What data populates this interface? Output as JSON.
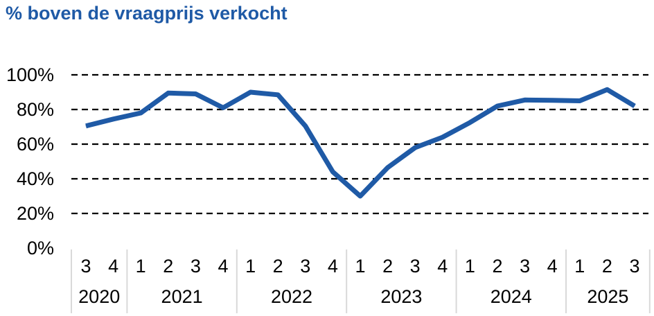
{
  "title": "% boven de vraagprijs verkocht",
  "colors": {
    "title": "#1f5aa6",
    "line": "#1f5aa6",
    "grid": "#000000",
    "axis_separator": "#d9d9d9"
  },
  "chart_data": {
    "type": "line",
    "title": "% boven de vraagprijs verkocht",
    "xlabel": "",
    "ylabel": "",
    "ylim": [
      0,
      100
    ],
    "yticks": [
      "0%",
      "20%",
      "40%",
      "60%",
      "80%",
      "100%"
    ],
    "ytick_values": [
      0,
      20,
      40,
      60,
      80,
      100
    ],
    "grid": "horizontal dashed",
    "legend": "none",
    "x": [
      "3",
      "4",
      "1",
      "2",
      "3",
      "4",
      "1",
      "2",
      "3",
      "4",
      "1",
      "2",
      "3",
      "4",
      "1",
      "2",
      "3",
      "4",
      "1",
      "2",
      "3"
    ],
    "year_groups": [
      {
        "label": "2020",
        "quarters": [
          "3",
          "4"
        ]
      },
      {
        "label": "2021",
        "quarters": [
          "1",
          "2",
          "3",
          "4"
        ]
      },
      {
        "label": "2022",
        "quarters": [
          "1",
          "2",
          "3",
          "4"
        ]
      },
      {
        "label": "2023",
        "quarters": [
          "1",
          "2",
          "3",
          "4"
        ]
      },
      {
        "label": "2024",
        "quarters": [
          "1",
          "2",
          "3",
          "4"
        ]
      },
      {
        "label": "2025",
        "quarters": [
          "1",
          "2",
          "3"
        ]
      }
    ],
    "series": [
      {
        "values": [
          70.5,
          74.5,
          78,
          89.5,
          89,
          81,
          90,
          88.5,
          70.5,
          44,
          30,
          46.5,
          58,
          64,
          72.5,
          82,
          85.5,
          85.3,
          85,
          91.5,
          82
        ]
      }
    ]
  }
}
